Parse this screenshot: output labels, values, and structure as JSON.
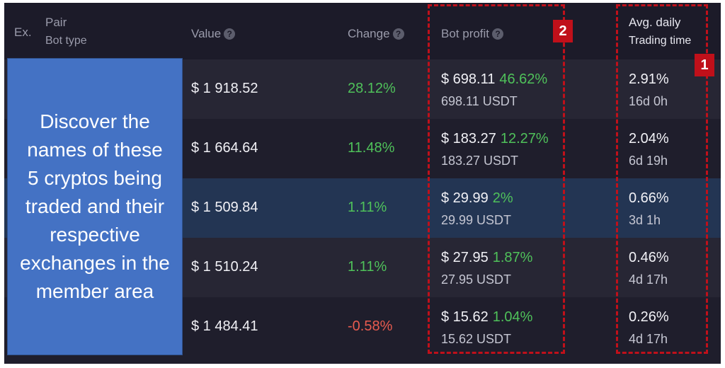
{
  "header": {
    "ex": "Ex.",
    "pair": "Pair",
    "bot_type": "Bot type",
    "value": "Value",
    "change": "Change",
    "bot_profit": "Bot profit",
    "avg_daily": "Avg. daily",
    "trading_time": "Trading time",
    "help_glyph": "?"
  },
  "rows": [
    {
      "value": "$ 1 918.52",
      "change": "28.12%",
      "change_sign": "positive",
      "profit": "$ 698.11",
      "profit_pct": "46.62%",
      "profit_usdt": "698.11 USDT",
      "avg_daily": "2.91%",
      "trading_time": "16d 0h"
    },
    {
      "value": "$ 1 664.64",
      "change": "11.48%",
      "change_sign": "positive",
      "profit": "$ 183.27",
      "profit_pct": "12.27%",
      "profit_usdt": "183.27 USDT",
      "avg_daily": "2.04%",
      "trading_time": "6d 19h"
    },
    {
      "value": "$ 1 509.84",
      "change": "1.11%",
      "change_sign": "positive",
      "profit": "$ 29.99",
      "profit_pct": "2%",
      "profit_usdt": "29.99 USDT",
      "avg_daily": "0.66%",
      "trading_time": "3d 1h"
    },
    {
      "value": "$ 1 510.24",
      "change": "1.11%",
      "change_sign": "positive",
      "profit": "$ 27.95",
      "profit_pct": "1.87%",
      "profit_usdt": "27.95 USDT",
      "avg_daily": "0.46%",
      "trading_time": "4d 17h"
    },
    {
      "value": "$ 1 484.41",
      "change": "-0.58%",
      "change_sign": "negative",
      "profit": "$ 15.62",
      "profit_pct": "1.04%",
      "profit_usdt": "15.62 USDT",
      "avg_daily": "0.26%",
      "trading_time": "4d 17h"
    }
  ],
  "overlay": {
    "lines": [
      "Discover the",
      "names of these",
      "5 cryptos being",
      "traded and their",
      "respective",
      "exchanges in the",
      "member area"
    ]
  },
  "annotations": {
    "badge_1": "1",
    "badge_2": "2"
  },
  "colors": {
    "positive": "#4fc15a",
    "negative": "#e85b4f",
    "highlight_row": "#233553",
    "annotation_red": "#c0101a",
    "overlay_blue": "#4472c4"
  }
}
